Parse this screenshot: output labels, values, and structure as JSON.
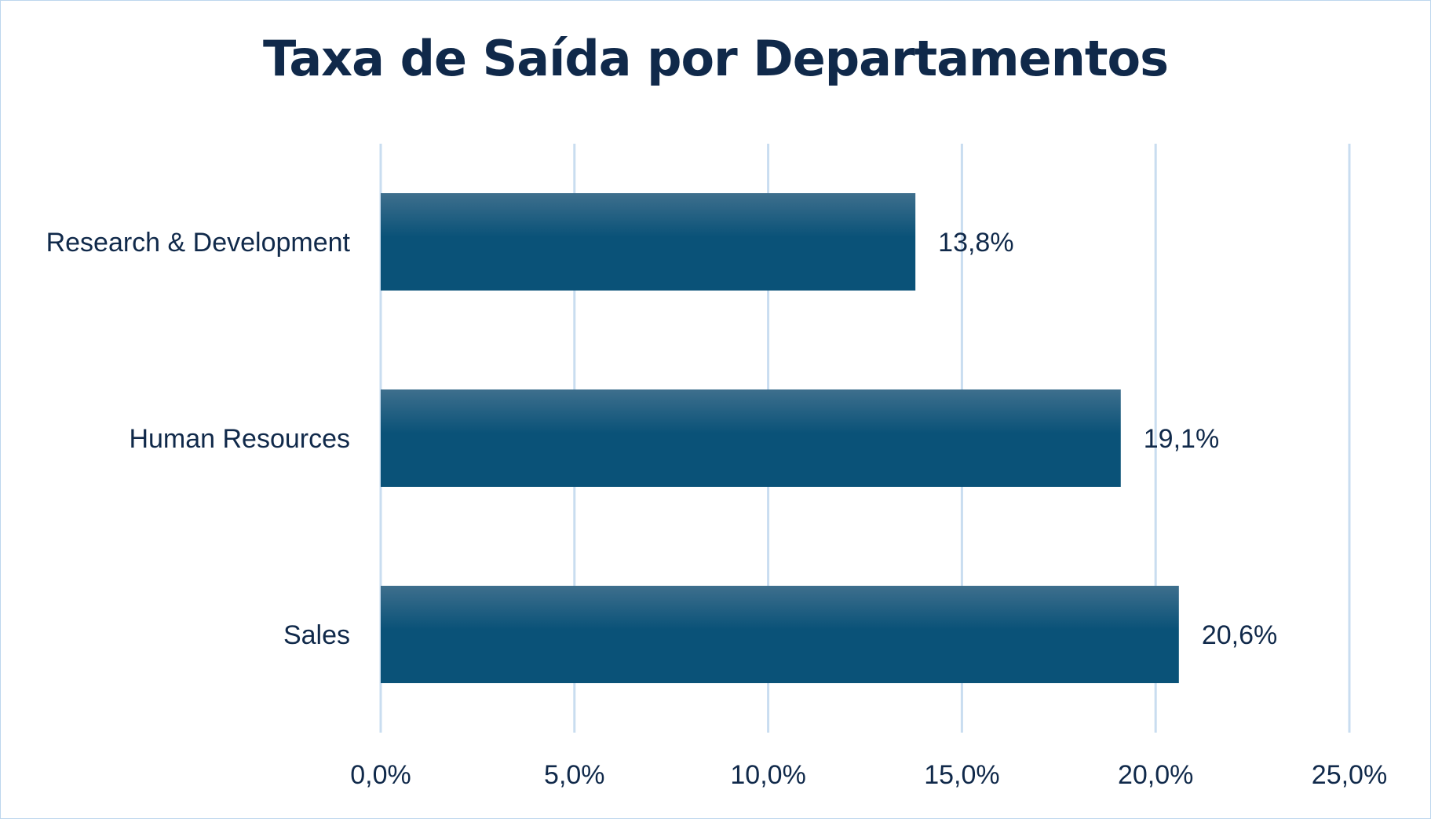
{
  "chart_data": {
    "type": "bar",
    "orientation": "horizontal",
    "title": "Taxa de Saída por Departamentos",
    "categories": [
      "Research & Development",
      "Human Resources",
      "Sales"
    ],
    "values": [
      13.8,
      19.1,
      20.6
    ],
    "data_labels": [
      "13,8%",
      "19,1%",
      "20,6%"
    ],
    "xlim": [
      0,
      25
    ],
    "x_ticks": [
      0,
      5,
      10,
      15,
      20,
      25
    ],
    "x_tick_labels": [
      "0,0%",
      "5,0%",
      "10,0%",
      "15,0%",
      "20,0%",
      "25,0%"
    ],
    "xlabel": "",
    "ylabel": "",
    "grid": "vertical",
    "legend": "none",
    "colors": {
      "bar_top": "#3e6f8d",
      "bar_bottom": "#0a5278",
      "grid": "#c9ddf0",
      "text": "#10294a",
      "frame": "#bdd7ee"
    }
  }
}
